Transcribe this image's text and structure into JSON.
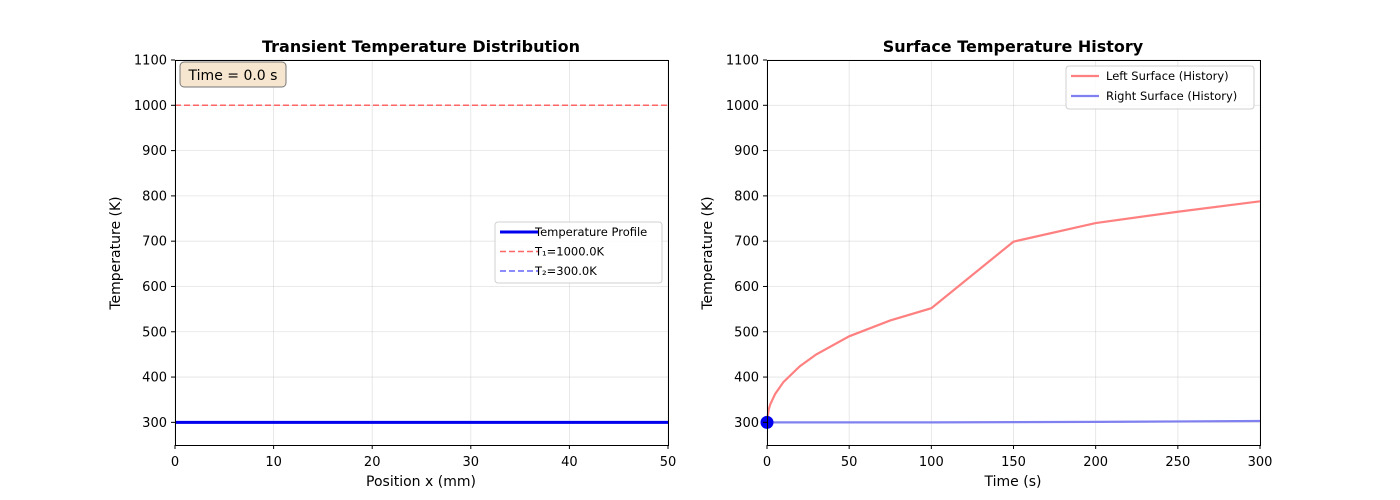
{
  "chart_data": [
    {
      "type": "line",
      "title": "Transient Temperature Distribution",
      "xlabel": "Position x (mm)",
      "ylabel": "Temperature (K)",
      "xlim": [
        0,
        50
      ],
      "ylim": [
        250,
        1100
      ],
      "xticks": [
        0,
        10,
        20,
        30,
        40,
        50
      ],
      "yticks": [
        300,
        400,
        500,
        600,
        700,
        800,
        900,
        1000,
        1100
      ],
      "grid": true,
      "annotation": "Time = 0.0 s",
      "legend_position": "center-right",
      "series": [
        {
          "name": "Temperature Profile",
          "color": "#0000ee",
          "style": "solid",
          "x": [
            0,
            50
          ],
          "y": [
            300,
            300
          ]
        },
        {
          "name": "T₁=1000.0K",
          "color": "#ff6666",
          "style": "dashed",
          "x": [
            0,
            50
          ],
          "y": [
            1000,
            1000
          ]
        },
        {
          "name": "T₂=300.0K",
          "color": "#6666ff",
          "style": "dashed",
          "x": [
            0,
            50
          ],
          "y": [
            300,
            300
          ]
        }
      ]
    },
    {
      "type": "line",
      "title": "Surface Temperature History",
      "xlabel": "Time (s)",
      "ylabel": "Temperature (K)",
      "xlim": [
        0,
        300
      ],
      "ylim": [
        250,
        1100
      ],
      "xticks": [
        0,
        50,
        100,
        150,
        200,
        250,
        300
      ],
      "yticks": [
        300,
        400,
        500,
        600,
        700,
        800,
        900,
        1000,
        1100
      ],
      "grid": true,
      "legend_position": "top-right",
      "series": [
        {
          "name": "Left Surface (History)",
          "color": "#ff8080",
          "style": "solid",
          "x": [
            0,
            1,
            2,
            5,
            10,
            20,
            30,
            50,
            75,
            100,
            150,
            200,
            250,
            300
          ],
          "y": [
            300,
            328,
            340,
            363,
            389,
            424,
            450,
            490,
            525,
            552,
            699,
            740,
            765,
            788
          ]
        },
        {
          "name": "Right Surface (History)",
          "color": "#8080f0",
          "style": "solid",
          "x": [
            0,
            100,
            200,
            250,
            300
          ],
          "y": [
            300,
            300,
            301,
            302,
            303
          ]
        }
      ],
      "current_point": {
        "x": 0,
        "y": 300,
        "color": "#0000ee"
      }
    }
  ]
}
